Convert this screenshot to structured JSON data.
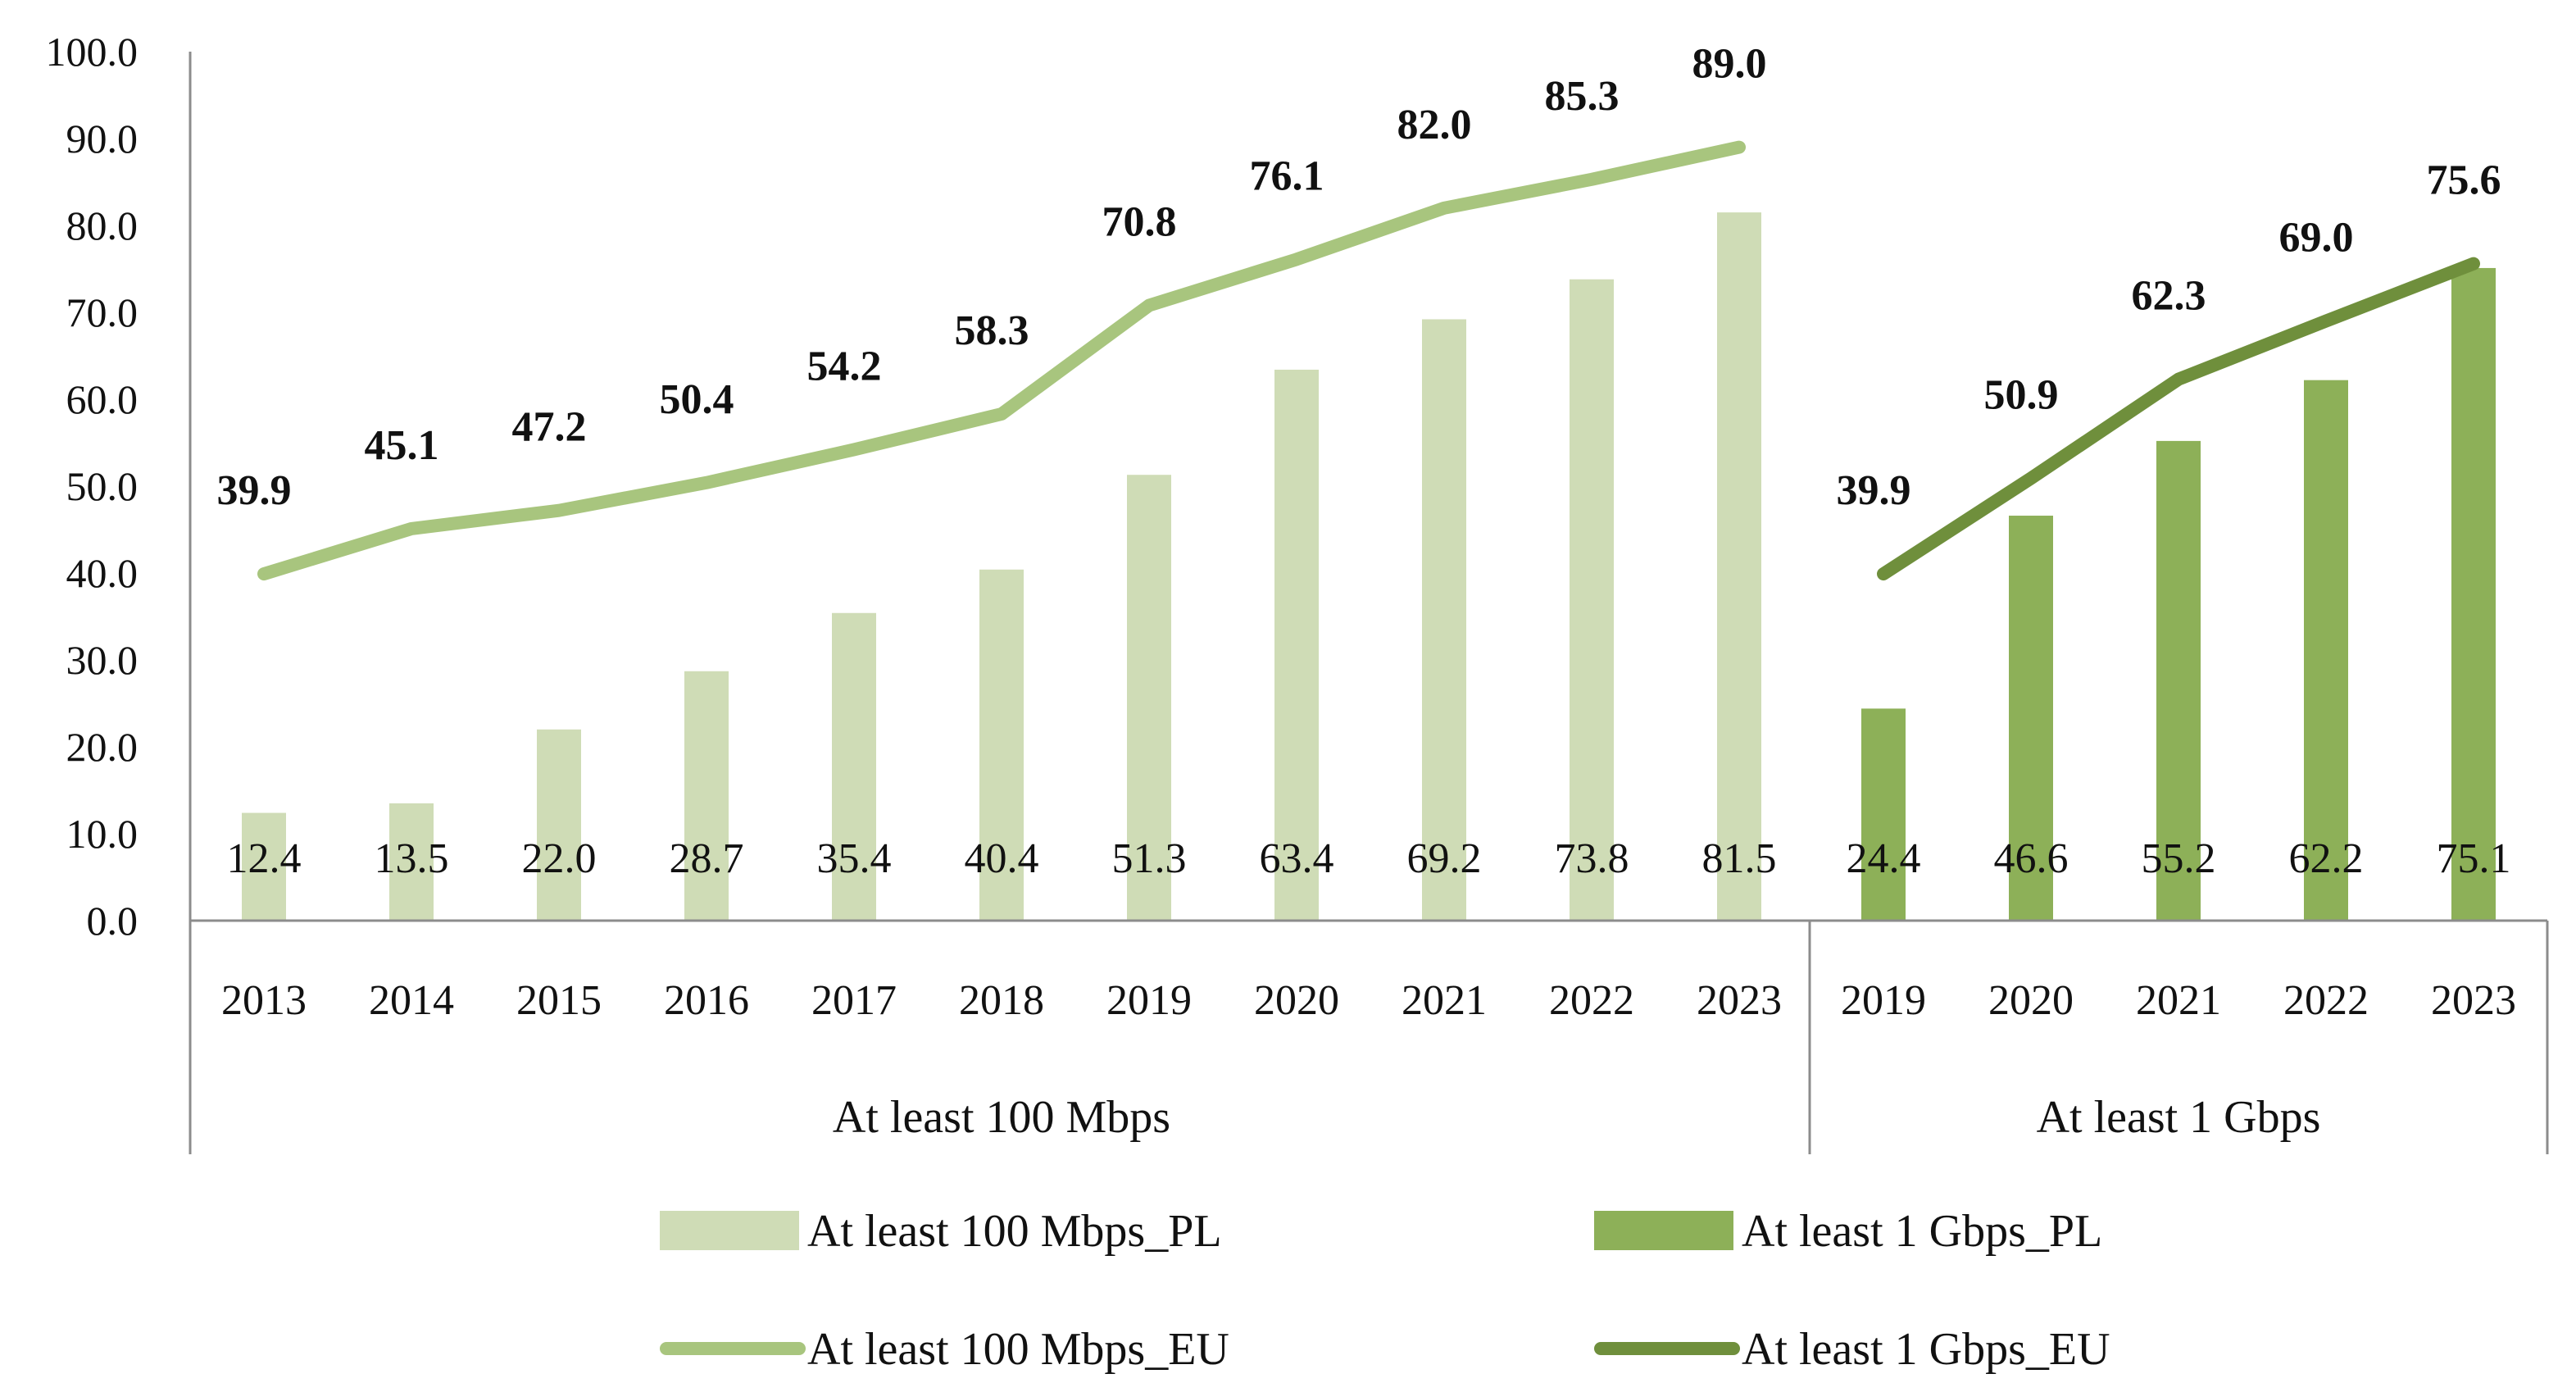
{
  "chart_data": {
    "type": "bar",
    "ylim": [
      0,
      100
    ],
    "y_ticks": [
      "0.0",
      "10.0",
      "20.0",
      "30.0",
      "40.0",
      "50.0",
      "60.0",
      "70.0",
      "80.0",
      "90.0",
      "100.0"
    ],
    "grid": false,
    "legend_position": "bottom",
    "groups": [
      {
        "label": "At least 100 Mbps",
        "categories": [
          "2013",
          "2014",
          "2015",
          "2016",
          "2017",
          "2018",
          "2019",
          "2020",
          "2021",
          "2022",
          "2023"
        ],
        "bar_series": {
          "name": "At least 100 Mbps_PL",
          "values": [
            12.4,
            13.5,
            22.0,
            28.7,
            35.4,
            40.4,
            51.3,
            63.4,
            69.2,
            73.8,
            81.5
          ],
          "labels": [
            "12.4",
            "13.5",
            "22.0",
            "28.7",
            "35.4",
            "40.4",
            "51.3",
            "63.4",
            "69.2",
            "73.8",
            "81.5"
          ],
          "color": "#cfdcb6"
        },
        "line_series": {
          "name": "At least 100 Mbps_EU",
          "values": [
            39.9,
            45.1,
            47.2,
            50.4,
            54.2,
            58.3,
            70.8,
            76.1,
            82.0,
            85.3,
            89.0
          ],
          "labels": [
            "39.9",
            "45.1",
            "47.2",
            "50.4",
            "54.2",
            "58.3",
            "70.8",
            "76.1",
            "82.0",
            "85.3",
            "89.0"
          ],
          "color": "#a8c57e"
        }
      },
      {
        "label": "At least 1 Gbps",
        "categories": [
          "2019",
          "2020",
          "2021",
          "2022",
          "2023"
        ],
        "bar_series": {
          "name": "At least 1 Gbps_PL",
          "values": [
            24.4,
            46.6,
            55.2,
            62.2,
            75.1
          ],
          "labels": [
            "24.4",
            "46.6",
            "55.2",
            "62.2",
            "75.1"
          ],
          "color": "#8db058"
        },
        "line_series": {
          "name": "At least 1 Gbps_EU",
          "values": [
            39.9,
            50.9,
            62.3,
            69.0,
            75.6
          ],
          "labels": [
            "39.9",
            "50.9",
            "62.3",
            "69.0",
            "75.6"
          ],
          "color": "#6f8f3c"
        }
      }
    ],
    "legend": [
      {
        "name": "At least 100 Mbps_PL",
        "kind": "bar",
        "color": "#cfdcb6"
      },
      {
        "name": "At least 1 Gbps_PL",
        "kind": "bar",
        "color": "#8db058"
      },
      {
        "name": "At least 100 Mbps_EU",
        "kind": "line",
        "color": "#a8c57e"
      },
      {
        "name": "At least 1 Gbps_EU",
        "kind": "line",
        "color": "#6f8f3c"
      }
    ]
  }
}
